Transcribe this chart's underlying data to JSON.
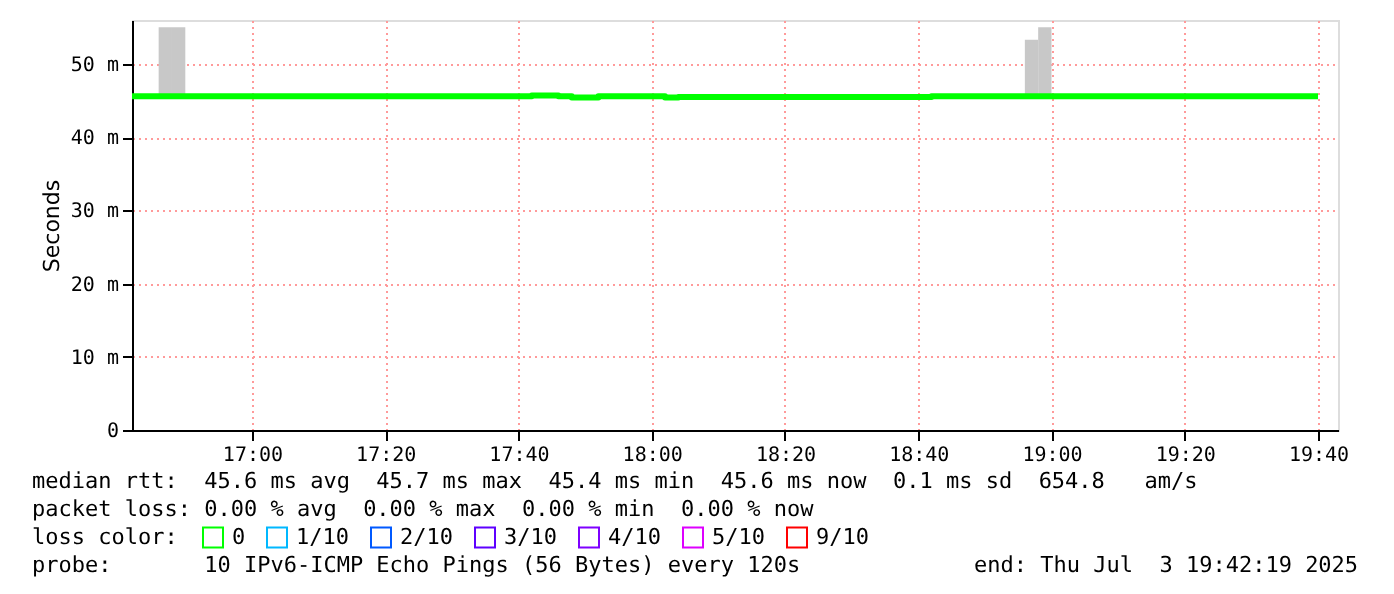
{
  "chart_data": {
    "type": "step",
    "ylabel": "Seconds",
    "legend_title": "loss color:",
    "legend": "bottom left",
    "grid": true,
    "x": [
      "2025-07-03T16:42",
      "2025-07-03T16:46",
      "2025-07-03T16:50",
      "2025-07-03T17:42",
      "2025-07-03T17:46",
      "2025-07-03T17:48",
      "2025-07-03T17:52",
      "2025-07-03T18:02",
      "2025-07-03T18:04",
      "2025-07-03T18:42",
      "2025-07-03T18:56",
      "2025-07-03T18:58",
      "2025-07-03T19:00",
      "2025-07-03T19:40"
    ],
    "series": [
      {
        "name": "0",
        "color": "#00ff00",
        "values": [
          45.6,
          45.6,
          45.6,
          45.7,
          45.6,
          45.4,
          45.6,
          45.4,
          45.5,
          45.6,
          45.6,
          45.6,
          45.6,
          45.6
        ]
      },
      {
        "type": "bar",
        "color": "#c8c8c8",
        "x": [
          "2025-07-03T16:47",
          "2025-07-03T16:49",
          "2025-07-03T18:57",
          "2025-07-03T18:59"
        ],
        "base": [
          45.6,
          45.6,
          45.6,
          45.6
        ],
        "values": [
          9.4,
          9.4,
          7.7,
          9.4
        ]
      },
      {
        "name": "1/10",
        "color": "#00b8ff",
        "values": [
          null,
          null,
          null,
          null,
          null,
          null,
          null,
          null,
          null,
          null,
          null,
          null,
          null,
          null
        ]
      },
      {
        "name": "2/10",
        "color": "#0059ff",
        "values": [
          null,
          null,
          null,
          null,
          null,
          null,
          null,
          null,
          null,
          null,
          null,
          null,
          null,
          null
        ]
      },
      {
        "name": "3/10",
        "color": "#5e00ff",
        "values": [
          null,
          null,
          null,
          null,
          null,
          null,
          null,
          null,
          null,
          null,
          null,
          null,
          null,
          null
        ]
      },
      {
        "name": "4/10",
        "color": "#7e00ff",
        "values": [
          null,
          null,
          null,
          null,
          null,
          null,
          null,
          null,
          null,
          null,
          null,
          null,
          null,
          null
        ]
      },
      {
        "name": "5/10",
        "color": "#dd00ff",
        "values": [
          null,
          null,
          null,
          null,
          null,
          null,
          null,
          null,
          null,
          null,
          null,
          null,
          null,
          null
        ]
      },
      {
        "name": "9/10",
        "color": "#ff0000",
        "values": [
          null,
          null,
          null,
          null,
          null,
          null,
          null,
          null,
          null,
          null,
          null,
          null,
          null,
          null
        ]
      }
    ],
    "xlim": [
      "2025-07-03T16:42",
      "2025-07-03T19:43"
    ],
    "xticks": [
      {
        "value": "2025-07-03T17:00",
        "label": "17:00"
      },
      {
        "value": "2025-07-03T17:20",
        "label": "17:20"
      },
      {
        "value": "2025-07-03T17:40",
        "label": "17:40"
      },
      {
        "value": "2025-07-03T18:00",
        "label": "18:00"
      },
      {
        "value": "2025-07-03T18:20",
        "label": "18:20"
      },
      {
        "value": "2025-07-03T18:40",
        "label": "18:40"
      },
      {
        "value": "2025-07-03T19:00",
        "label": "19:00"
      },
      {
        "value": "2025-07-03T19:20",
        "label": "19:20"
      },
      {
        "value": "2025-07-03T19:40",
        "label": "19:40"
      }
    ],
    "ylim": [
      0,
      56
    ],
    "yticks": [
      0,
      {
        "value": 10,
        "label": "10 m"
      },
      {
        "value": 20,
        "label": "20 m"
      },
      {
        "value": 30,
        "label": "30 m"
      },
      {
        "value": 40,
        "label": "40 m"
      },
      {
        "value": 50,
        "label": "50 m"
      }
    ],
    "annotations": [
      "median rtt:  45.6 ms avg  45.7 ms max  45.4 ms min  45.6 ms now  0.1 ms sd  654.8   am/s",
      "packet loss: 0.00 % avg  0.00 % max  0.00 % min  0.00 % now",
      "probe:       10 IPv6-ICMP Echo Pings (56 Bytes) every 120s",
      "end: Thu Jul  3 19:42:19 2025"
    ]
  }
}
